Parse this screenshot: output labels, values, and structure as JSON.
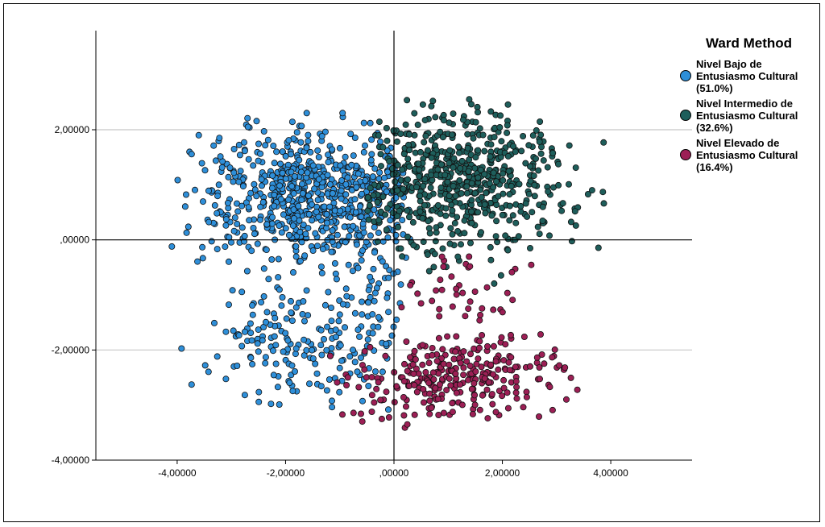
{
  "chart_data": {
    "type": "scatter",
    "title": "",
    "xlabel": "",
    "ylabel": "",
    "xlim": [
      -5.5,
      5.5
    ],
    "ylim": [
      -4.0,
      3.8
    ],
    "xticks": [
      "-4,00000",
      "-2,00000",
      ",00000",
      "2,00000",
      "4,00000"
    ],
    "yticks": [
      "2,00000",
      ",00000",
      "-2,00000",
      "-4,00000"
    ],
    "grid": "horizontal",
    "legend_position": "right",
    "legend": {
      "title": "Ward Method"
    },
    "series": [
      {
        "name": "Nivel Bajo de\nEntusiasmo Cultural\n(51.0%)",
        "color": "#2e8fd9",
        "regions": [
          {
            "cx": -1.5,
            "cy": 0.8,
            "sx": 1.05,
            "sy": 0.6,
            "n": 700,
            "xmin": -4.2,
            "xmax": 0.3,
            "ymin": -0.6,
            "ymax": 2.4
          },
          {
            "cx": -1.6,
            "cy": -1.9,
            "sx": 1.0,
            "sy": 0.6,
            "n": 190,
            "xmin": -4.2,
            "xmax": 0.1,
            "ymin": -3.5,
            "ymax": -0.6
          },
          {
            "cx": -0.5,
            "cy": -0.8,
            "sx": 0.45,
            "sy": 0.4,
            "n": 40,
            "xmin": -1.5,
            "xmax": 0.2,
            "ymin": -1.6,
            "ymax": 0.0
          }
        ]
      },
      {
        "name": "Nivel Intermedio de\nEntusiasmo Cultural\n(32.6%)",
        "color": "#1e5e5b",
        "regions": [
          {
            "cx": 1.2,
            "cy": 1.1,
            "sx": 1.0,
            "sy": 0.6,
            "n": 620,
            "xmin": -0.5,
            "xmax": 4.2,
            "ymin": -1.0,
            "ymax": 2.75
          }
        ]
      },
      {
        "name": "Nivel Elevado de\nEntusiasmo Cultural\n(16.4%)",
        "color": "#9c1f55",
        "regions": [
          {
            "cx": 1.2,
            "cy": -2.5,
            "sx": 1.0,
            "sy": 0.35,
            "n": 290,
            "xmin": -1.5,
            "xmax": 3.4,
            "ymin": -3.5,
            "ymax": -1.7
          },
          {
            "cx": 1.2,
            "cy": -0.9,
            "sx": 0.7,
            "sy": 0.35,
            "n": 40,
            "xmin": 0.0,
            "xmax": 2.8,
            "ymin": -1.5,
            "ymax": 0.2
          }
        ]
      }
    ]
  }
}
